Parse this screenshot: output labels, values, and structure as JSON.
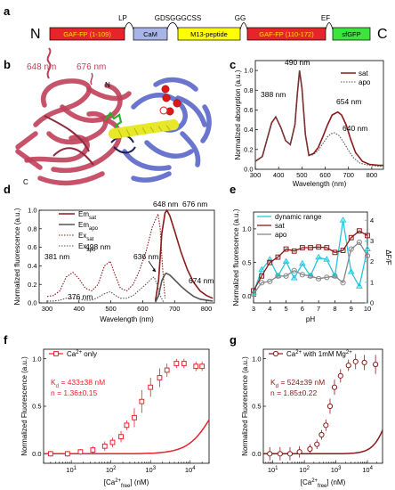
{
  "panel_letters": [
    "a",
    "b",
    "c",
    "d",
    "e",
    "f",
    "g"
  ],
  "construct": {
    "n_label": "N",
    "c_label": "C",
    "linker_labels": [
      "LP",
      "GDSGGGCSS",
      "GG",
      "EF"
    ],
    "segments": [
      {
        "label": "GAF-FP (1-109)",
        "color": "#e8232a",
        "text_color": "#ffe000"
      },
      {
        "label": "CaM",
        "color": "#a6b4e8",
        "text_color": "#000000"
      },
      {
        "label": "M13-peptide",
        "color": "#ffff00",
        "text_color": "#000000"
      },
      {
        "label": "GAF-FP (110-172)",
        "color": "#e8232a",
        "text_color": "#ffe000"
      },
      {
        "label": "sfGFP",
        "color": "#39e639",
        "text_color": "#000000"
      }
    ]
  },
  "structure": {
    "labels": [
      "648 nm",
      "676 nm",
      "N",
      "C"
    ],
    "colors": {
      "gaf": "#c0405a",
      "cam": "#5a67c8",
      "m13": "#e8e82a",
      "ca": "#e01818",
      "chromophore": "#2bb02b"
    }
  },
  "chart_data": [
    {
      "panel": "c",
      "type": "line",
      "xlabel": "Wavelength (nm)",
      "ylabel": "Normalized absorption (a.u.)",
      "xlim": [
        300,
        850
      ],
      "ylim": [
        0,
        1.1
      ],
      "xticks": [
        300,
        400,
        500,
        600,
        700,
        800
      ],
      "yticks": [
        0.0,
        0.2,
        0.4,
        0.6,
        0.8,
        1.0
      ],
      "series": [
        {
          "name": "sat",
          "color": "#8b1a1a",
          "style": "solid",
          "x": [
            300,
            330,
            350,
            370,
            388,
            410,
            430,
            450,
            470,
            480,
            490,
            500,
            515,
            530,
            550,
            570,
            590,
            610,
            630,
            654,
            670,
            690,
            710,
            730,
            760,
            790,
            830,
            850
          ],
          "y": [
            0.08,
            0.13,
            0.3,
            0.47,
            0.53,
            0.42,
            0.29,
            0.25,
            0.45,
            0.75,
            1.0,
            0.82,
            0.35,
            0.14,
            0.16,
            0.22,
            0.33,
            0.45,
            0.55,
            0.58,
            0.55,
            0.45,
            0.3,
            0.17,
            0.08,
            0.05,
            0.04,
            0.04
          ]
        },
        {
          "name": "apo",
          "color": "#555555",
          "style": "dotted",
          "x": [
            300,
            330,
            350,
            370,
            388,
            410,
            430,
            450,
            470,
            480,
            490,
            500,
            515,
            530,
            550,
            570,
            590,
            610,
            625,
            640,
            660,
            680,
            700,
            720,
            750,
            790,
            830,
            850
          ],
          "y": [
            0.08,
            0.13,
            0.3,
            0.47,
            0.53,
            0.42,
            0.29,
            0.25,
            0.45,
            0.75,
            1.0,
            0.82,
            0.35,
            0.14,
            0.15,
            0.19,
            0.26,
            0.33,
            0.36,
            0.37,
            0.34,
            0.27,
            0.19,
            0.12,
            0.06,
            0.04,
            0.03,
            0.03
          ]
        }
      ],
      "annotations": [
        "388 nm",
        "490 nm",
        "654 nm",
        "640 nm"
      ]
    },
    {
      "panel": "d",
      "type": "line",
      "xlabel": "Wavelength (nm)",
      "ylabel": "Normalized fluorescence (a.u.)",
      "xlim": [
        275,
        825
      ],
      "ylim": [
        0,
        1.0
      ],
      "xticks": [
        300,
        400,
        500,
        600,
        700,
        800
      ],
      "yticks": [
        0.0,
        0.2,
        0.4,
        0.6,
        0.8,
        1.0
      ],
      "series": [
        {
          "name": "Em sat",
          "color": "#8b1a1a",
          "style": "solid",
          "x": [
            640,
            650,
            660,
            670,
            676,
            685,
            700,
            720,
            740,
            760,
            780,
            800,
            820
          ],
          "y": [
            0.02,
            0.25,
            0.75,
            0.97,
            1.0,
            0.94,
            0.78,
            0.55,
            0.36,
            0.22,
            0.13,
            0.08,
            0.05
          ]
        },
        {
          "name": "Em apo",
          "color": "#555555",
          "style": "solid",
          "x": [
            640,
            650,
            660,
            670,
            674,
            685,
            700,
            720,
            740,
            760,
            780,
            800,
            820
          ],
          "y": [
            0.01,
            0.08,
            0.24,
            0.31,
            0.32,
            0.3,
            0.25,
            0.18,
            0.12,
            0.07,
            0.04,
            0.03,
            0.02
          ]
        },
        {
          "name": "Ex sat",
          "color": "#8b1a1a",
          "style": "dotted",
          "x": [
            300,
            320,
            340,
            360,
            381,
            400,
            420,
            440,
            460,
            480,
            498,
            510,
            530,
            550,
            570,
            590,
            610,
            630,
            648,
            655,
            662,
            670
          ],
          "y": [
            0.07,
            0.08,
            0.13,
            0.28,
            0.33,
            0.26,
            0.16,
            0.13,
            0.2,
            0.4,
            0.45,
            0.33,
            0.16,
            0.13,
            0.2,
            0.35,
            0.55,
            0.82,
            0.96,
            0.8,
            0.4,
            0.05
          ]
        },
        {
          "name": "Ex apo",
          "color": "#555555",
          "style": "dotted",
          "x": [
            300,
            320,
            340,
            360,
            376,
            400,
            420,
            440,
            460,
            480,
            498,
            510,
            530,
            550,
            570,
            590,
            610,
            630,
            636,
            645,
            655,
            665
          ],
          "y": [
            0.02,
            0.02,
            0.03,
            0.05,
            0.05,
            0.04,
            0.03,
            0.03,
            0.06,
            0.1,
            0.12,
            0.09,
            0.05,
            0.05,
            0.08,
            0.14,
            0.2,
            0.27,
            0.28,
            0.2,
            0.08,
            0.01
          ]
        }
      ],
      "annotations": [
        "648 nm",
        "676 nm",
        "381 nm",
        "498 nm",
        "636 nm",
        "674 nm",
        "376 nm"
      ]
    },
    {
      "panel": "e",
      "type": "line",
      "xlabel": "pH",
      "ylabel": "Normalized fluorescence (a.u.)",
      "ylabel_right": "ΔF/F",
      "xlim": [
        3,
        10
      ],
      "ylim": [
        -0.1,
        1.25
      ],
      "ylim_right": [
        0,
        4.4
      ],
      "xticks": [
        3,
        4,
        5,
        6,
        7,
        8,
        9,
        10
      ],
      "yticks": [
        0.0,
        0.5,
        1.0
      ],
      "yticks_right": [
        0,
        1,
        2,
        3,
        4
      ],
      "series": [
        {
          "name": "dynamic range",
          "color": "#1ec8e0",
          "axis": "right",
          "x": [
            3,
            3.5,
            4,
            4.5,
            5,
            5.5,
            6,
            6.5,
            7,
            7.5,
            8,
            8.5,
            9,
            9.5,
            10
          ],
          "y": [
            0.5,
            1.6,
            2.1,
            1.3,
            2.0,
            1.2,
            1.9,
            1.3,
            2.2,
            2.1,
            1.3,
            4.0,
            1.5,
            0.8,
            2.6
          ]
        },
        {
          "name": "sat",
          "color": "#8b1a1a",
          "axis": "left",
          "x": [
            3,
            3.5,
            4,
            4.5,
            5,
            5.5,
            6,
            6.5,
            7,
            7.5,
            8,
            8.5,
            9,
            9.5,
            10
          ],
          "y": [
            0.08,
            0.3,
            0.5,
            0.58,
            0.7,
            0.67,
            0.72,
            0.72,
            0.73,
            0.72,
            0.65,
            0.68,
            0.87,
            0.97,
            0.9
          ]
        },
        {
          "name": "apo",
          "color": "#888888",
          "axis": "left",
          "x": [
            3,
            3.5,
            4,
            4.5,
            5,
            5.5,
            6,
            6.5,
            7,
            7.5,
            8,
            8.5,
            9,
            9.5,
            10
          ],
          "y": [
            0.03,
            0.2,
            0.22,
            0.3,
            0.3,
            0.38,
            0.32,
            0.3,
            0.26,
            0.28,
            0.3,
            0.2,
            0.7,
            0.8,
            0.6
          ]
        }
      ]
    },
    {
      "panel": "f",
      "type": "scatter",
      "xlabel_main": "[Ca",
      "xlabel_sup": "2+",
      "xlabel_sub": "free",
      "xlabel_tail": "] (nM)",
      "ylabel": "Normalized Fluorescence (a.u.)",
      "xscale": "log",
      "xlim": [
        2,
        30000
      ],
      "ylim": [
        -0.1,
        1.1
      ],
      "xticks": [
        10,
        100,
        1000,
        10000
      ],
      "xtick_labels": [
        "10",
        "10",
        "10",
        "10"
      ],
      "xtick_exps": [
        "1",
        "2",
        "3",
        "4"
      ],
      "yticks": [
        0.0,
        0.5,
        1.0
      ],
      "legend_main": "Ca",
      "legend_sup": "2+",
      "legend_tail": " only",
      "kd_label": "K",
      "kd_sub": "d",
      "kd_value": " = 433±38 nM",
      "hill_label": "n = 1.36±0.15",
      "series": [
        {
          "name": "Ca2+ only",
          "color": "#e8232a",
          "x": [
            3,
            8,
            17,
            35,
            70,
            110,
            180,
            250,
            390,
            600,
            1000,
            1700,
            2600,
            4500,
            7000,
            14000,
            20000
          ],
          "y": [
            0.0,
            0.0,
            0.02,
            0.04,
            0.08,
            0.12,
            0.18,
            0.3,
            0.38,
            0.55,
            0.7,
            0.8,
            0.88,
            0.95,
            0.95,
            0.92,
            0.92
          ],
          "err": [
            0.03,
            0.03,
            0.03,
            0.04,
            0.05,
            0.05,
            0.06,
            0.05,
            0.1,
            0.12,
            0.1,
            0.1,
            0.07,
            0.05,
            0.05,
            0.05,
            0.05
          ]
        }
      ]
    },
    {
      "panel": "g",
      "type": "scatter",
      "xlabel_main": "[Ca",
      "xlabel_sup": "2+",
      "xlabel_sub": "free",
      "xlabel_tail": "] (nM)",
      "ylabel": "Normalized Fluorescence (a.u.)",
      "xscale": "log",
      "xlim": [
        5,
        30000
      ],
      "ylim": [
        -0.1,
        1.1
      ],
      "xticks": [
        10,
        100,
        1000,
        10000
      ],
      "xtick_labels": [
        "10",
        "10",
        "10",
        "10"
      ],
      "xtick_exps": [
        "1",
        "2",
        "3",
        "4"
      ],
      "yticks": [
        0.0,
        0.5,
        1.0
      ],
      "legend_main": "Ca",
      "legend_sup": "2+",
      "legend_tail": " with 1mM Mg",
      "legend_sup2": "2+",
      "kd_label": "K",
      "kd_sub": "d",
      "kd_value": " = 524±39 nM",
      "hill_label": "n = 1.85±0.22",
      "series": [
        {
          "name": "Ca2+ with 1mM Mg2+",
          "color": "#8b1a1a",
          "x": [
            8,
            17,
            35,
            70,
            150,
            250,
            350,
            480,
            650,
            900,
            1400,
            2500,
            4200,
            8000,
            18000
          ],
          "y": [
            0.0,
            0.0,
            0.0,
            0.02,
            0.05,
            0.1,
            0.2,
            0.3,
            0.5,
            0.7,
            0.82,
            0.93,
            0.97,
            0.96,
            0.94
          ],
          "err": [
            0.07,
            0.07,
            0.07,
            0.06,
            0.05,
            0.05,
            0.05,
            0.06,
            0.08,
            0.08,
            0.07,
            0.06,
            0.08,
            0.08,
            0.1
          ]
        }
      ]
    }
  ]
}
